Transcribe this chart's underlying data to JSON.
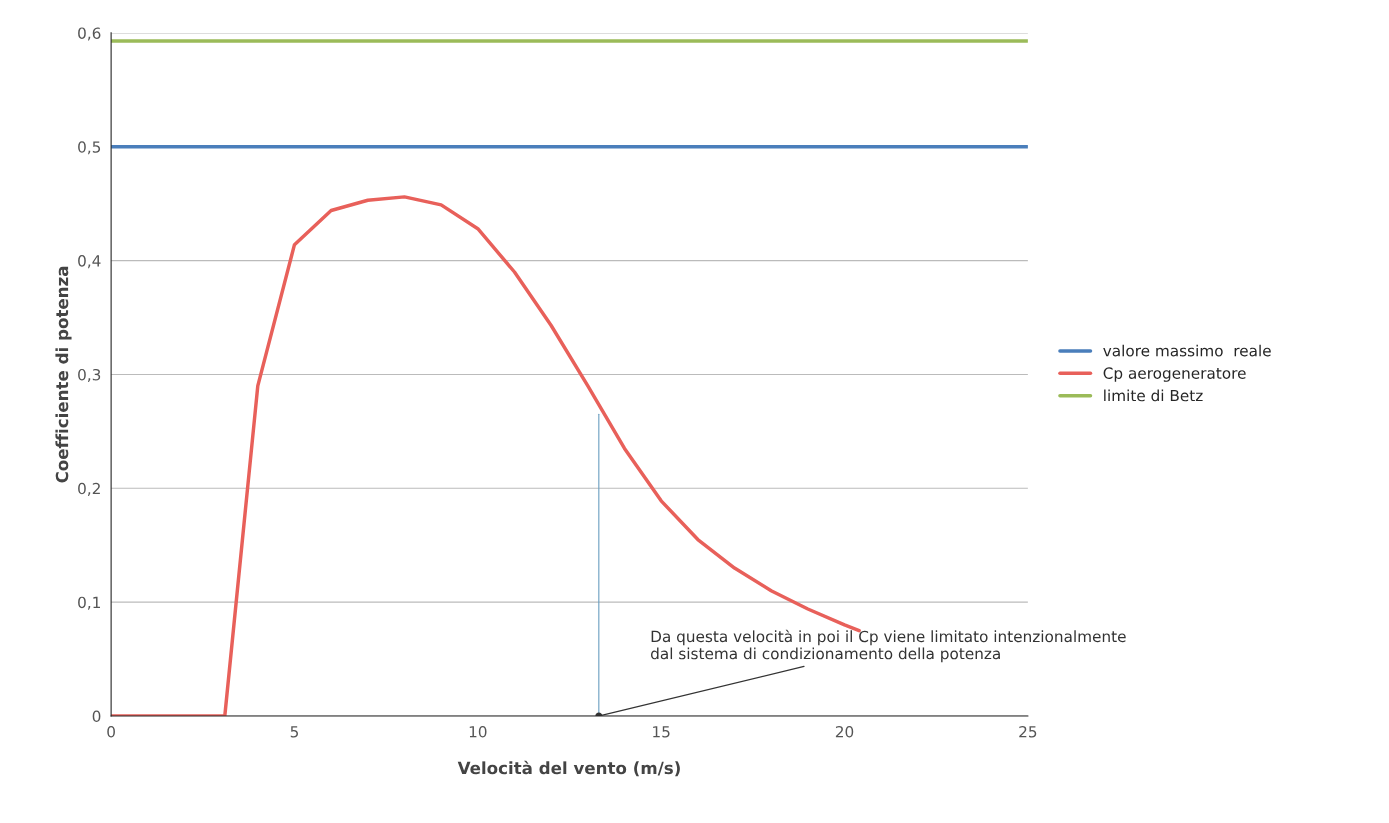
{
  "chart_data": {
    "type": "line",
    "xlabel": "Velocità del vento (m/s)",
    "ylabel": "Coefficiente di potenza",
    "xlim": [
      0,
      25
    ],
    "xticks": [
      0,
      5,
      10,
      15,
      20,
      25
    ],
    "ylim": [
      0,
      0.6
    ],
    "yticks": [
      {
        "value": 0,
        "label": "0"
      },
      {
        "value": 0.1,
        "label": "0,1"
      },
      {
        "value": 0.2,
        "label": "0,2"
      },
      {
        "value": 0.3,
        "label": "0,3"
      },
      {
        "value": 0.4,
        "label": "0,4"
      },
      {
        "value": 0.5,
        "label": "0,5"
      },
      {
        "value": 0.6,
        "label": "0,6"
      }
    ],
    "grid": "y",
    "legend": "right",
    "marker": "none",
    "line_style": "solid",
    "series": [
      {
        "name": "valore massimo  reale",
        "color": "#4a7ebb",
        "x": [
          0,
          25
        ],
        "values": [
          0.5,
          0.5
        ]
      },
      {
        "name": "Cp aerogeneratore",
        "color": "#e8605a",
        "x": [
          0,
          3,
          3.1,
          4,
          5,
          6,
          7,
          8,
          9,
          10,
          11,
          12,
          13,
          14,
          15,
          16,
          17,
          18,
          19,
          20,
          20.4
        ],
        "values": [
          0,
          0,
          0,
          0.29,
          0.414,
          0.444,
          0.453,
          0.456,
          0.449,
          0.428,
          0.39,
          0.343,
          0.29,
          0.235,
          0.189,
          0.155,
          0.13,
          0.11,
          0.094,
          0.08,
          0.075
        ]
      },
      {
        "name": "limite di Betz",
        "color": "#9bbb59",
        "x": [
          0,
          25
        ],
        "values": [
          0.593,
          0.593
        ]
      },
      {
        "color": "#6a9ec0",
        "x": [
          13.3,
          13.3
        ],
        "values": [
          0,
          0.265
        ]
      }
    ],
    "annotations": [
      {
        "text": "Da questa velocità in poi il Cp viene limitato intenzionalmente\ndal sistema di condizionamento della potenza",
        "x": 13.3,
        "y": 0
      }
    ]
  }
}
